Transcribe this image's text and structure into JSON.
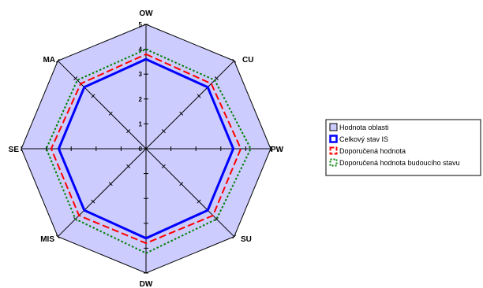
{
  "chart_data": {
    "type": "radar",
    "categories": [
      "OW",
      "CU",
      "PW",
      "SU",
      "DW",
      "MIS",
      "SE",
      "MA"
    ],
    "range": [
      0,
      5
    ],
    "ticks": [
      "0",
      "1",
      "2",
      "3",
      "4",
      "5"
    ],
    "series": [
      {
        "name": "Hodnota oblasti",
        "values": [
          5,
          5,
          5,
          5,
          5,
          5,
          5,
          5
        ],
        "color": "#ccccff",
        "stroke": "#000000",
        "style": "area"
      },
      {
        "name": "Celkový stav IS",
        "values": [
          3.6,
          3.5,
          3.5,
          3.5,
          3.6,
          3.5,
          3.5,
          3.5
        ],
        "color": "#0000ff",
        "style": "solid"
      },
      {
        "name": "Doporučená hodnota",
        "values": [
          3.8,
          3.7,
          3.8,
          3.8,
          3.8,
          3.8,
          3.8,
          3.7
        ],
        "color": "#ff0000",
        "style": "dashed"
      },
      {
        "name": "Doporučená hodnota budoucího stavu",
        "values": [
          4.0,
          3.9,
          4.2,
          4.0,
          4.2,
          4.0,
          4.0,
          3.9
        ],
        "color": "#008000",
        "style": "dotted"
      }
    ]
  }
}
